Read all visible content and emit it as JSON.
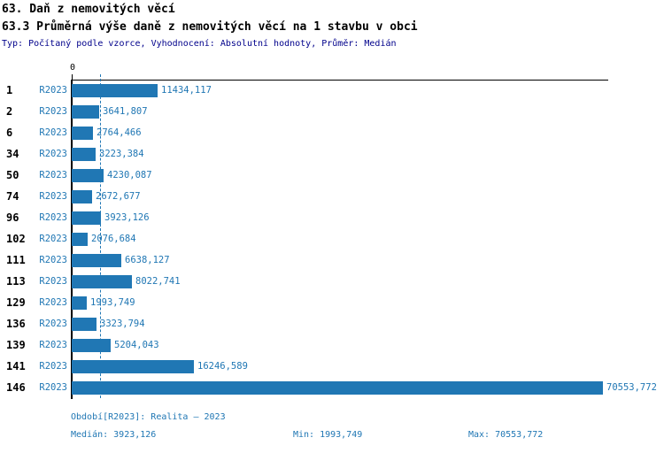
{
  "header": {
    "title": "63. Daň z nemovitých věcí",
    "subtitle": "63.3 Průměrná výše daně z nemovitých věcí na 1 stavbu v obci",
    "meta": "Typ: Počítaný podle vzorce, Vyhodnocení: Absolutní hodnoty, Průměr: Medián"
  },
  "colors": {
    "bar": "#2077b4",
    "value_label": "#2077b4",
    "meta_text": "#00008b",
    "axis": "#000000",
    "median_line": "#2077b4"
  },
  "axis": {
    "zero_label": "0"
  },
  "chart_data": {
    "type": "bar",
    "orientation": "horizontal",
    "title": "63.3 Průměrná výše daně z nemovitých věcí na 1 stavbu v obci",
    "series_label": "R2023",
    "categories": [
      "1",
      "2",
      "6",
      "34",
      "50",
      "74",
      "96",
      "102",
      "111",
      "113",
      "129",
      "136",
      "139",
      "141",
      "146"
    ],
    "values": [
      11434.117,
      3641.807,
      2764.466,
      3223.384,
      4230.087,
      2672.677,
      3923.126,
      2076.684,
      6638.127,
      8022.741,
      1993.749,
      3323.794,
      5204.043,
      16246.589,
      70553.772
    ],
    "value_labels": [
      "11434,117",
      "3641,807",
      "2764,466",
      "3223,384",
      "4230,087",
      "2672,677",
      "3923,126",
      "2076,684",
      "6638,127",
      "8022,741",
      "1993,749",
      "3323,794",
      "5204,043",
      "16246,589",
      "70553,772"
    ],
    "xlim": [
      0,
      70553.772
    ],
    "median": 3923.126,
    "min": 1993.749,
    "max": 70553.772,
    "grid": false,
    "legend": false,
    "median_reference_line": true
  },
  "footer": {
    "period": "Období[R2023]: Realita – 2023",
    "median": "Medián: 3923,126",
    "min": "Min: 1993,749",
    "max": "Max: 70553,772"
  }
}
